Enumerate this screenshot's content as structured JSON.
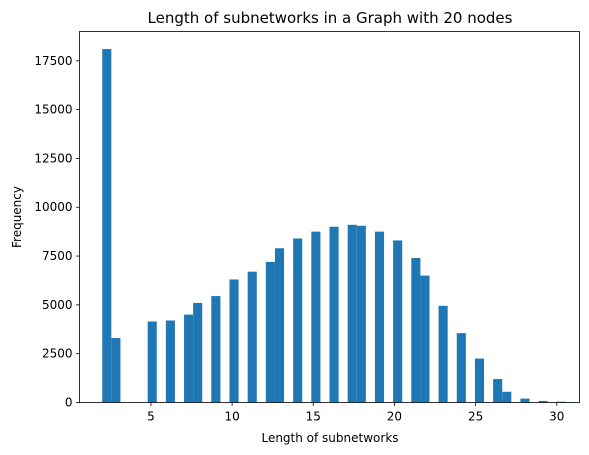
{
  "chart_data": {
    "type": "bar",
    "title": "Length of subnetworks in a Graph with 20 nodes",
    "xlabel": "Length of subnetworks",
    "ylabel": "Frequency",
    "xlim": [
      0.6,
      31.4
    ],
    "ylim": [
      0,
      19000
    ],
    "xticks": [
      5,
      10,
      15,
      20,
      25,
      30
    ],
    "yticks": [
      0,
      2500,
      5000,
      7500,
      10000,
      12500,
      15000,
      17500
    ],
    "grid": false,
    "bar_color": "#1f77b4",
    "bars": [
      {
        "x0": 2.0,
        "x1": 2.56,
        "value": 18100
      },
      {
        "x0": 2.56,
        "x1": 3.12,
        "value": 3300
      },
      {
        "x0": 4.8,
        "x1": 5.36,
        "value": 4150
      },
      {
        "x0": 5.92,
        "x1": 6.48,
        "value": 4200
      },
      {
        "x0": 7.04,
        "x1": 7.6,
        "value": 4500
      },
      {
        "x0": 7.6,
        "x1": 8.16,
        "value": 5100
      },
      {
        "x0": 8.72,
        "x1": 9.28,
        "value": 5450
      },
      {
        "x0": 9.84,
        "x1": 10.4,
        "value": 6300
      },
      {
        "x0": 10.96,
        "x1": 11.52,
        "value": 6700
      },
      {
        "x0": 12.08,
        "x1": 12.64,
        "value": 7200
      },
      {
        "x0": 12.64,
        "x1": 13.2,
        "value": 7900
      },
      {
        "x0": 13.76,
        "x1": 14.32,
        "value": 8400
      },
      {
        "x0": 14.88,
        "x1": 15.44,
        "value": 8750
      },
      {
        "x0": 16.0,
        "x1": 16.56,
        "value": 9000
      },
      {
        "x0": 17.12,
        "x1": 17.68,
        "value": 9100
      },
      {
        "x0": 17.68,
        "x1": 18.24,
        "value": 9050
      },
      {
        "x0": 18.8,
        "x1": 19.36,
        "value": 8750
      },
      {
        "x0": 19.92,
        "x1": 20.48,
        "value": 8300
      },
      {
        "x0": 21.04,
        "x1": 21.6,
        "value": 7400
      },
      {
        "x0": 21.6,
        "x1": 22.16,
        "value": 6500
      },
      {
        "x0": 22.72,
        "x1": 23.28,
        "value": 4950
      },
      {
        "x0": 23.84,
        "x1": 24.4,
        "value": 3550
      },
      {
        "x0": 24.96,
        "x1": 25.52,
        "value": 2250
      },
      {
        "x0": 26.08,
        "x1": 26.64,
        "value": 1200
      },
      {
        "x0": 26.64,
        "x1": 27.2,
        "value": 550
      },
      {
        "x0": 27.76,
        "x1": 28.32,
        "value": 200
      },
      {
        "x0": 28.88,
        "x1": 29.44,
        "value": 80
      },
      {
        "x0": 30.0,
        "x1": 30.56,
        "value": 40
      },
      {
        "x0": 30.56,
        "x1": 31.12,
        "value": 20
      }
    ]
  }
}
